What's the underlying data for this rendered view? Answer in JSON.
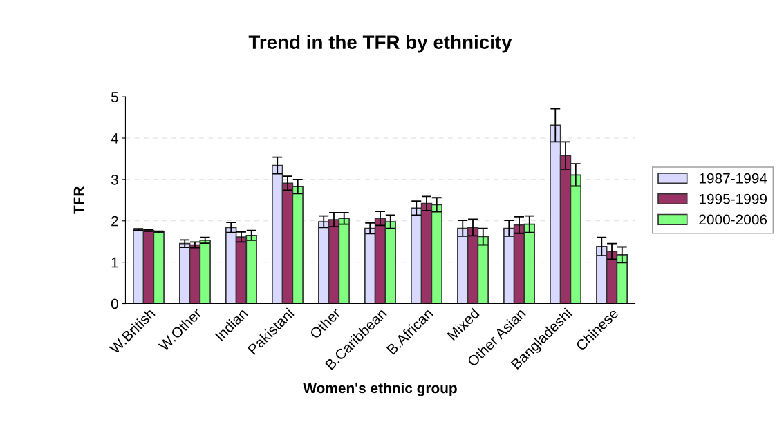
{
  "chart_data": {
    "type": "bar",
    "title": "Trend in the TFR by ethnicity",
    "xlabel": "Women's ethnic group",
    "ylabel": "TFR",
    "categories": [
      "W.British",
      "W.Other",
      "Indian",
      "Pakistani",
      "Other",
      "B.Caribbean",
      "B.African",
      "Mixed",
      "Other Asian",
      "Bangladeshi",
      "Chinese"
    ],
    "series": [
      {
        "name": "1987-1994",
        "color": "#d9d9ff",
        "values": [
          1.79,
          1.45,
          1.84,
          3.34,
          1.98,
          1.82,
          2.31,
          1.82,
          1.82,
          4.31,
          1.38
        ],
        "errors": [
          0.02,
          0.09,
          0.12,
          0.2,
          0.14,
          0.13,
          0.17,
          0.19,
          0.19,
          0.4,
          0.22
        ]
      },
      {
        "name": "1995-1999",
        "color": "#993366",
        "values": [
          1.77,
          1.42,
          1.61,
          2.91,
          2.03,
          2.06,
          2.42,
          1.84,
          1.9,
          3.58,
          1.26
        ],
        "errors": [
          0.02,
          0.07,
          0.12,
          0.17,
          0.17,
          0.17,
          0.17,
          0.2,
          0.2,
          0.33,
          0.19
        ]
      },
      {
        "name": "2000-2006",
        "color": "#80ff80",
        "values": [
          1.73,
          1.53,
          1.65,
          2.83,
          2.06,
          1.98,
          2.39,
          1.62,
          1.92,
          3.11,
          1.18
        ],
        "errors": [
          0.02,
          0.07,
          0.12,
          0.17,
          0.14,
          0.16,
          0.17,
          0.2,
          0.2,
          0.27,
          0.19
        ]
      }
    ],
    "ylim": [
      0,
      5
    ],
    "yticks": [
      0,
      1,
      2,
      3,
      4,
      5
    ],
    "grid": "y",
    "legend": "right"
  }
}
